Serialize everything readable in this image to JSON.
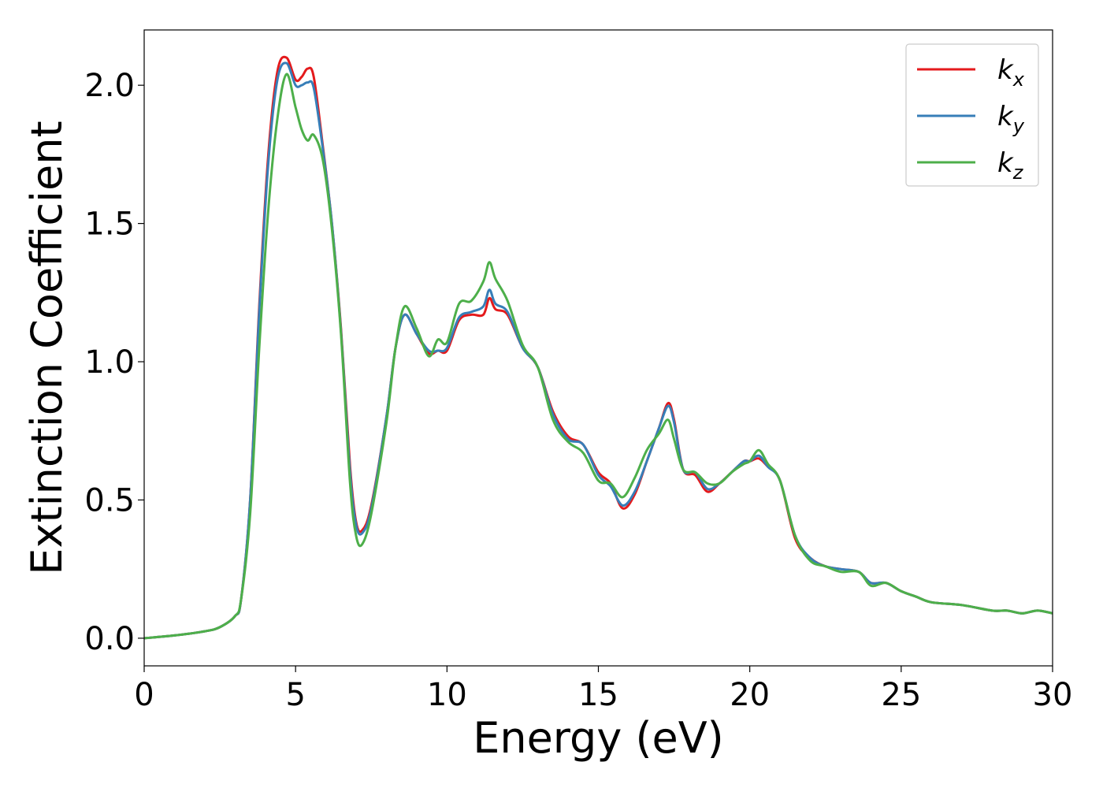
{
  "chart_data": {
    "type": "line",
    "xlabel": "Energy (eV)",
    "ylabel": "Extinction Coefficient",
    "xlim": [
      0,
      30
    ],
    "ylim": [
      -0.1,
      2.2
    ],
    "xticks": [
      0,
      5,
      10,
      15,
      20,
      25,
      30
    ],
    "yticks": [
      0.0,
      0.5,
      1.0,
      1.5,
      2.0
    ],
    "xtick_labels": [
      "0",
      "5",
      "10",
      "15",
      "20",
      "25",
      "30"
    ],
    "ytick_labels": [
      "0.0",
      "0.5",
      "1.0",
      "1.5",
      "2.0"
    ],
    "grid": false,
    "legend_position": "top-right",
    "series": [
      {
        "name": "k_x",
        "legend_main": "k",
        "legend_sub": "x",
        "color": "#e41a1c",
        "x": [
          0,
          1,
          2,
          2.5,
          3.0,
          3.2,
          3.5,
          3.8,
          4.1,
          4.4,
          4.7,
          5.0,
          5.2,
          5.4,
          5.6,
          5.9,
          6.2,
          6.5,
          6.8,
          7.0,
          7.2,
          7.5,
          8.0,
          8.3,
          8.6,
          9.0,
          9.4,
          9.7,
          10.0,
          10.4,
          10.8,
          11.2,
          11.4,
          11.6,
          12.0,
          12.5,
          13.0,
          13.5,
          14.0,
          14.5,
          15.0,
          15.4,
          15.8,
          16.2,
          16.6,
          17.0,
          17.3,
          17.5,
          17.8,
          18.2,
          18.6,
          19.0,
          19.4,
          19.8,
          20.0,
          20.3,
          20.6,
          21.0,
          21.5,
          22.0,
          22.5,
          23.0,
          23.6,
          24.0,
          24.5,
          25.0,
          25.5,
          26.0,
          27.0,
          28.0,
          28.5,
          29.0,
          29.5,
          30.0
        ],
        "y": [
          0.0,
          0.01,
          0.025,
          0.04,
          0.08,
          0.14,
          0.5,
          1.2,
          1.75,
          2.05,
          2.1,
          2.02,
          2.03,
          2.06,
          2.03,
          1.78,
          1.5,
          1.12,
          0.62,
          0.42,
          0.39,
          0.48,
          0.8,
          1.05,
          1.17,
          1.1,
          1.03,
          1.04,
          1.04,
          1.15,
          1.17,
          1.17,
          1.23,
          1.19,
          1.17,
          1.05,
          0.98,
          0.82,
          0.73,
          0.7,
          0.6,
          0.56,
          0.47,
          0.52,
          0.64,
          0.76,
          0.85,
          0.79,
          0.61,
          0.59,
          0.53,
          0.56,
          0.6,
          0.64,
          0.64,
          0.65,
          0.62,
          0.57,
          0.36,
          0.29,
          0.26,
          0.25,
          0.24,
          0.2,
          0.2,
          0.17,
          0.15,
          0.13,
          0.12,
          0.1,
          0.1,
          0.09,
          0.1,
          0.09
        ]
      },
      {
        "name": "k_y",
        "legend_main": "k",
        "legend_sub": "y",
        "color": "#377eb8",
        "x": [
          0,
          1,
          2,
          2.5,
          3.0,
          3.2,
          3.5,
          3.8,
          4.1,
          4.4,
          4.7,
          5.0,
          5.2,
          5.4,
          5.6,
          5.9,
          6.2,
          6.5,
          6.8,
          7.0,
          7.2,
          7.5,
          8.0,
          8.3,
          8.6,
          9.0,
          9.4,
          9.7,
          10.0,
          10.4,
          10.8,
          11.2,
          11.4,
          11.6,
          12.0,
          12.5,
          13.0,
          13.5,
          14.0,
          14.5,
          15.0,
          15.4,
          15.8,
          16.2,
          16.6,
          17.0,
          17.3,
          17.5,
          17.8,
          18.2,
          18.6,
          19.0,
          19.4,
          19.8,
          20.0,
          20.3,
          20.6,
          21.0,
          21.5,
          22.0,
          22.5,
          23.0,
          23.6,
          24.0,
          24.5,
          25.0,
          25.5,
          26.0,
          27.0,
          28.0,
          28.5,
          29.0,
          29.5,
          30.0
        ],
        "y": [
          0.0,
          0.01,
          0.025,
          0.04,
          0.08,
          0.14,
          0.5,
          1.18,
          1.72,
          2.02,
          2.08,
          2.0,
          2.0,
          2.01,
          1.99,
          1.77,
          1.5,
          1.11,
          0.6,
          0.41,
          0.38,
          0.47,
          0.8,
          1.05,
          1.17,
          1.1,
          1.04,
          1.04,
          1.05,
          1.16,
          1.18,
          1.2,
          1.26,
          1.21,
          1.18,
          1.05,
          0.98,
          0.81,
          0.72,
          0.7,
          0.59,
          0.55,
          0.48,
          0.53,
          0.64,
          0.76,
          0.84,
          0.78,
          0.61,
          0.6,
          0.54,
          0.56,
          0.6,
          0.64,
          0.64,
          0.66,
          0.62,
          0.57,
          0.37,
          0.29,
          0.26,
          0.25,
          0.24,
          0.2,
          0.2,
          0.17,
          0.15,
          0.13,
          0.12,
          0.1,
          0.1,
          0.09,
          0.1,
          0.09
        ]
      },
      {
        "name": "k_z",
        "legend_main": "k",
        "legend_sub": "z",
        "color": "#4daf4a",
        "x": [
          0,
          1,
          2,
          2.5,
          3.0,
          3.2,
          3.5,
          3.8,
          4.1,
          4.4,
          4.7,
          5.0,
          5.2,
          5.4,
          5.6,
          5.9,
          6.2,
          6.5,
          6.8,
          7.0,
          7.2,
          7.5,
          8.0,
          8.3,
          8.6,
          9.0,
          9.4,
          9.7,
          10.0,
          10.4,
          10.8,
          11.2,
          11.4,
          11.6,
          12.0,
          12.5,
          13.0,
          13.5,
          14.0,
          14.5,
          15.0,
          15.4,
          15.8,
          16.2,
          16.6,
          17.0,
          17.3,
          17.5,
          17.8,
          18.2,
          18.6,
          19.0,
          19.4,
          19.8,
          20.0,
          20.3,
          20.6,
          21.0,
          21.5,
          22.0,
          22.5,
          23.0,
          23.6,
          24.0,
          24.5,
          25.0,
          25.5,
          26.0,
          27.0,
          28.0,
          28.5,
          29.0,
          29.5,
          30.0
        ],
        "y": [
          0.0,
          0.01,
          0.025,
          0.04,
          0.08,
          0.14,
          0.45,
          1.05,
          1.55,
          1.88,
          2.04,
          1.92,
          1.84,
          1.8,
          1.82,
          1.73,
          1.48,
          1.1,
          0.56,
          0.37,
          0.34,
          0.45,
          0.78,
          1.05,
          1.2,
          1.12,
          1.02,
          1.08,
          1.07,
          1.21,
          1.22,
          1.29,
          1.36,
          1.3,
          1.22,
          1.06,
          0.98,
          0.79,
          0.71,
          0.67,
          0.57,
          0.56,
          0.51,
          0.58,
          0.68,
          0.74,
          0.79,
          0.72,
          0.61,
          0.6,
          0.56,
          0.56,
          0.6,
          0.63,
          0.64,
          0.68,
          0.63,
          0.57,
          0.37,
          0.28,
          0.26,
          0.24,
          0.24,
          0.19,
          0.2,
          0.17,
          0.15,
          0.13,
          0.12,
          0.1,
          0.1,
          0.09,
          0.1,
          0.09
        ]
      }
    ]
  }
}
